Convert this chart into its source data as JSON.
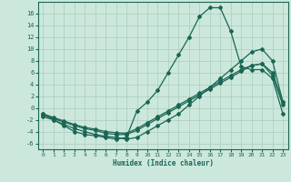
{
  "bg_color": "#cce8dc",
  "grid_color": "#aaccbb",
  "line_color": "#1a6655",
  "xlabel": "Humidex (Indice chaleur)",
  "xlim": [
    -0.5,
    23.5
  ],
  "ylim": [
    -7,
    18
  ],
  "xticks": [
    0,
    1,
    2,
    3,
    4,
    5,
    6,
    7,
    8,
    9,
    10,
    11,
    12,
    13,
    14,
    15,
    16,
    17,
    18,
    19,
    20,
    21,
    22,
    23
  ],
  "yticks": [
    -6,
    -4,
    -2,
    0,
    2,
    4,
    6,
    8,
    10,
    12,
    14,
    16
  ],
  "series1_x": [
    0,
    1,
    2,
    3,
    4,
    5,
    6,
    7,
    8,
    9,
    10,
    11,
    12,
    13,
    14,
    15,
    16,
    17,
    18,
    19,
    20,
    21,
    22,
    23
  ],
  "series1_y": [
    -1,
    -2,
    -3,
    -4,
    -4.5,
    -4.7,
    -5,
    -5.3,
    -5,
    -0.5,
    1,
    3,
    6,
    9,
    12,
    15.5,
    17,
    17,
    13,
    7,
    6.5,
    6.5,
    5,
    -1
  ],
  "series2_x": [
    0,
    1,
    2,
    3,
    4,
    5,
    6,
    7,
    8,
    9,
    10,
    11,
    12,
    13,
    14,
    15,
    16,
    17,
    18,
    19,
    20,
    21,
    22,
    23
  ],
  "series2_y": [
    -1.5,
    -2,
    -2.8,
    -3.5,
    -4,
    -4.5,
    -4.8,
    -5,
    -5.3,
    -5,
    -4,
    -3,
    -2,
    -1,
    0.5,
    2,
    3.5,
    5,
    6.5,
    8,
    9.5,
    10,
    8,
    1
  ],
  "series3_x": [
    0,
    1,
    2,
    3,
    4,
    5,
    6,
    7,
    8,
    9,
    10,
    11,
    12,
    13,
    14,
    15,
    16,
    17,
    18,
    19,
    20,
    21,
    22,
    23
  ],
  "series3_y": [
    -1.2,
    -1.8,
    -2.4,
    -3,
    -3.5,
    -3.8,
    -4.3,
    -4.5,
    -4.5,
    -3.8,
    -2.8,
    -1.8,
    -0.8,
    0.2,
    1.2,
    2.2,
    3.2,
    4.2,
    5.2,
    6.2,
    7.2,
    7.5,
    6,
    1
  ],
  "series4_x": [
    0,
    1,
    2,
    3,
    4,
    5,
    6,
    7,
    8,
    9,
    10,
    11,
    12,
    13,
    14,
    15,
    16,
    17,
    18,
    19,
    20,
    21,
    22,
    23
  ],
  "series4_y": [
    -1,
    -1.6,
    -2.2,
    -2.8,
    -3.3,
    -3.6,
    -4,
    -4.2,
    -4.3,
    -3.5,
    -2.5,
    -1.5,
    -0.5,
    0.5,
    1.5,
    2.5,
    3.5,
    4.5,
    5.5,
    6.5,
    7.2,
    7.5,
    5.5,
    0.5
  ]
}
